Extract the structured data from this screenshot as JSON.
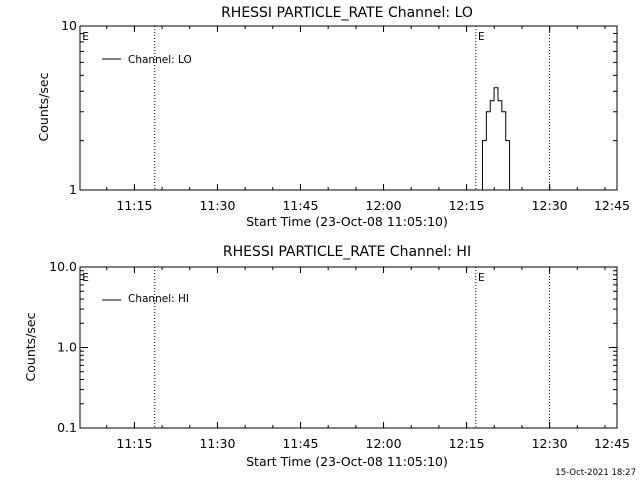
{
  "footer_timestamp": "15-Oct-2021 18:27",
  "chart_data": [
    {
      "type": "line",
      "title": "RHESSI PARTICLE_RATE Channel: LO",
      "xlabel": "Start Time (23-Oct-08 11:05:10)",
      "ylabel": "Counts/sec",
      "y_scale": "log",
      "ylim": [
        1,
        10
      ],
      "y_ticks": [
        {
          "v": 1,
          "label": "1"
        },
        {
          "v": 10,
          "label": "10"
        }
      ],
      "x_range_min": [
        0,
        97
      ],
      "x_ticks": [
        {
          "v": 9.83,
          "label": "11:15"
        },
        {
          "v": 24.83,
          "label": "11:30"
        },
        {
          "v": 39.83,
          "label": "11:45"
        },
        {
          "v": 54.83,
          "label": "12:00"
        },
        {
          "v": 69.83,
          "label": "12:15"
        },
        {
          "v": 84.83,
          "label": "12:30"
        },
        {
          "v": 99.83,
          "label": "12:45"
        }
      ],
      "markers": [
        {
          "x": 13.5,
          "label": "E"
        },
        {
          "x": 71.5,
          "label": ""
        },
        {
          "x": 84.8,
          "label": ""
        }
      ],
      "corner_labels": [
        {
          "x": 0.4,
          "label": "E"
        },
        {
          "x": 71.9,
          "label": "E"
        }
      ],
      "legend": {
        "location": "top-left",
        "entries": [
          "Channel: LO"
        ]
      },
      "series": [
        {
          "name": "Channel: LO",
          "step": true,
          "x": [
            72.0,
            72.7,
            73.4,
            74.1,
            74.8,
            75.5,
            76.2,
            76.9,
            77.6,
            78.3,
            79.0,
            79.7
          ],
          "values": [
            1,
            2,
            3,
            3.5,
            4.2,
            3.5,
            3,
            2,
            1,
            1,
            1,
            1
          ]
        }
      ]
    },
    {
      "type": "line",
      "title": "RHESSI PARTICLE_RATE Channel: HI",
      "xlabel": "Start Time (23-Oct-08 11:05:10)",
      "ylabel": "Counts/sec",
      "y_scale": "log",
      "ylim": [
        0.1,
        10
      ],
      "y_ticks": [
        {
          "v": 0.1,
          "label": "0.1"
        },
        {
          "v": 1,
          "label": "1.0"
        },
        {
          "v": 10,
          "label": "10.0"
        }
      ],
      "x_range_min": [
        0,
        97
      ],
      "x_ticks": [
        {
          "v": 9.83,
          "label": "11:15"
        },
        {
          "v": 24.83,
          "label": "11:30"
        },
        {
          "v": 39.83,
          "label": "11:45"
        },
        {
          "v": 54.83,
          "label": "12:00"
        },
        {
          "v": 69.83,
          "label": "12:15"
        },
        {
          "v": 84.83,
          "label": "12:30"
        },
        {
          "v": 99.83,
          "label": "12:45"
        }
      ],
      "markers": [
        {
          "x": 13.5,
          "label": ""
        },
        {
          "x": 71.5,
          "label": ""
        },
        {
          "x": 84.8,
          "label": ""
        }
      ],
      "corner_labels": [
        {
          "x": 0.4,
          "label": "E"
        },
        {
          "x": 71.9,
          "label": "E"
        }
      ],
      "legend": {
        "location": "top-left",
        "entries": [
          "Channel: HI"
        ]
      },
      "series": [
        {
          "name": "Channel: HI",
          "step": true,
          "x": [],
          "values": []
        }
      ]
    }
  ]
}
